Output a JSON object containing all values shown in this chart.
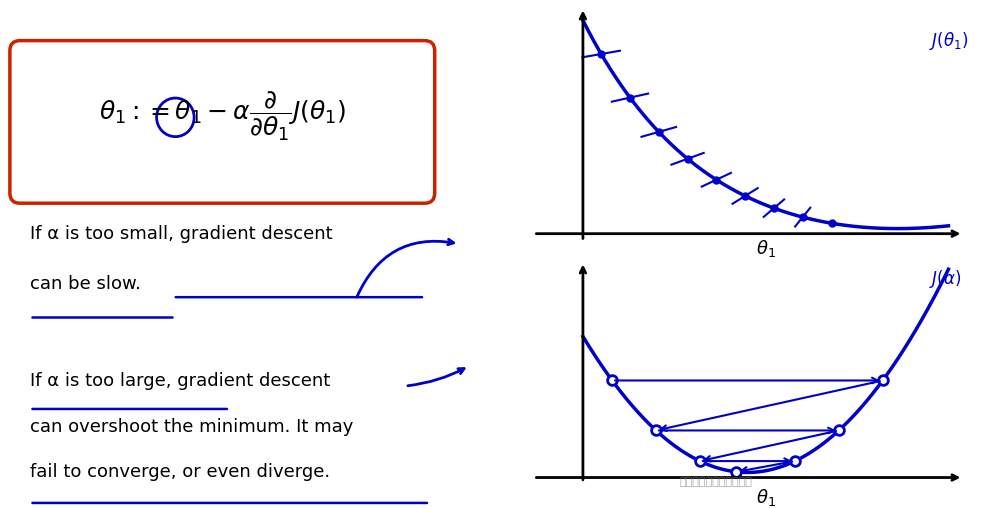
{
  "bg_color": "#ffffff",
  "blue": "#0000cc",
  "red": "#cc2200",
  "black": "#000000",
  "formula_text": "$\\theta_1 := \\theta_1 - \\alpha\\dfrac{\\partial}{\\partial\\theta_1}J(\\theta_1)$",
  "top_left_text1": "If α is too small, gradient descent",
  "top_left_text2": "can be slow.",
  "bot_left_text1": "If α is too large, gradient descent",
  "bot_left_text2": "can overshoot the minimum. It may",
  "bot_left_text3": "fail to converge, or even diverge.",
  "label_theta1_top": "$\\theta_1$",
  "label_J_top": "$J(\\theta_1)$",
  "label_theta1_bot": "$\\theta_1$",
  "label_J_bot": "$J(\\alpha)$"
}
